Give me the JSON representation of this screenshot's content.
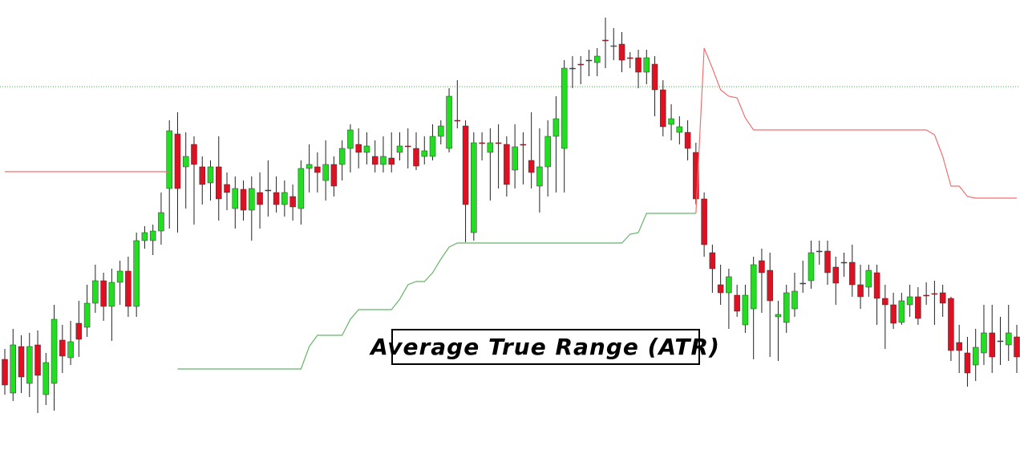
{
  "chart_data": {
    "type": "candlestick",
    "annotation": "Average True Range (ATR)",
    "ylim": [
      0,
      576
    ],
    "up_color": "#22dd22",
    "down_color": "#dd1122",
    "open": [
      128,
      86,
      144,
      98,
      146,
      84,
      98,
      152,
      130,
      173,
      168,
      198,
      226,
      194,
      224,
      238,
      194,
      276,
      276,
      288,
      341,
      409,
      368,
      396,
      368,
      348,
      368,
      346,
      316,
      340,
      314,
      336,
      339,
      336,
      321,
      331,
      316,
      366,
      368,
      351,
      371,
      371,
      391,
      396,
      386,
      381,
      371,
      379,
      386,
      394,
      391,
      381,
      381,
      406,
      391,
      426,
      419,
      286,
      398,
      386,
      398,
      396,
      364,
      396,
      376,
      344,
      368,
      406,
      391,
      491,
      496,
      501,
      498,
      526,
      518,
      521,
      504,
      504,
      486,
      496,
      464,
      421,
      411,
      411,
      386,
      328,
      261,
      221,
      211,
      208,
      171,
      191,
      251,
      239,
      181,
      174,
      191,
      223,
      226,
      263,
      263,
      243,
      249,
      249,
      221,
      218,
      236,
      204,
      196,
      174,
      196,
      206,
      208,
      210,
      211,
      204,
      149,
      136,
      121,
      136,
      161,
      151,
      146,
      156
    ],
    "high": [
      141,
      166,
      158,
      161,
      164,
      136,
      196,
      171,
      176,
      201,
      221,
      246,
      236,
      241,
      251,
      256,
      286,
      294,
      296,
      336,
      426,
      436,
      411,
      406,
      381,
      376,
      406,
      361,
      356,
      351,
      356,
      361,
      376,
      356,
      351,
      346,
      376,
      396,
      386,
      401,
      381,
      401,
      421,
      416,
      411,
      401,
      406,
      411,
      411,
      416,
      411,
      406,
      421,
      426,
      466,
      476,
      426,
      411,
      411,
      416,
      421,
      406,
      421,
      411,
      436,
      416,
      426,
      456,
      501,
      506,
      506,
      514,
      516,
      554,
      541,
      536,
      511,
      514,
      514,
      506,
      476,
      446,
      431,
      426,
      398,
      336,
      271,
      246,
      241,
      221,
      221,
      256,
      266,
      261,
      201,
      221,
      236,
      251,
      276,
      276,
      276,
      256,
      261,
      271,
      246,
      246,
      246,
      221,
      211,
      211,
      221,
      218,
      224,
      226,
      221,
      206,
      171,
      156,
      166,
      196,
      196,
      181,
      196,
      171
    ],
    "low": [
      84,
      76,
      86,
      81,
      61,
      71,
      64,
      111,
      121,
      131,
      156,
      186,
      176,
      151,
      196,
      181,
      181,
      266,
      258,
      271,
      291,
      286,
      316,
      296,
      321,
      326,
      301,
      314,
      291,
      301,
      276,
      291,
      306,
      311,
      306,
      301,
      296,
      336,
      336,
      326,
      331,
      351,
      361,
      366,
      371,
      361,
      361,
      361,
      376,
      366,
      364,
      371,
      376,
      396,
      386,
      416,
      274,
      276,
      376,
      326,
      341,
      331,
      341,
      346,
      341,
      311,
      331,
      336,
      336,
      466,
      471,
      481,
      481,
      491,
      501,
      486,
      491,
      466,
      471,
      431,
      406,
      401,
      396,
      376,
      321,
      256,
      211,
      196,
      166,
      181,
      161,
      128,
      186,
      131,
      126,
      161,
      181,
      211,
      216,
      246,
      221,
      196,
      231,
      206,
      191,
      206,
      171,
      141,
      166,
      171,
      181,
      171,
      196,
      171,
      181,
      126,
      111,
      94,
      101,
      121,
      111,
      121,
      126,
      111
    ],
    "close": [
      96,
      146,
      106,
      144,
      108,
      124,
      178,
      132,
      150,
      153,
      198,
      226,
      194,
      224,
      238,
      194,
      276,
      286,
      288,
      311,
      413,
      341,
      381,
      371,
      346,
      368,
      328,
      336,
      341,
      314,
      341,
      321,
      338,
      321,
      336,
      318,
      366,
      371,
      361,
      371,
      344,
      391,
      414,
      386,
      394,
      371,
      381,
      371,
      394,
      393,
      369,
      388,
      406,
      419,
      456,
      425,
      321,
      398,
      397,
      398,
      397,
      346,
      393,
      395,
      361,
      368,
      406,
      428,
      491,
      490,
      495,
      500,
      506,
      525,
      519,
      501,
      503,
      486,
      504,
      464,
      418,
      428,
      418,
      391,
      328,
      271,
      241,
      211,
      231,
      188,
      208,
      246,
      236,
      201,
      184,
      211,
      213,
      222,
      261,
      262,
      236,
      223,
      248,
      221,
      206,
      239,
      204,
      196,
      173,
      201,
      206,
      179,
      207,
      209,
      198,
      139,
      139,
      111,
      143,
      161,
      131,
      150,
      161,
      131
    ],
    "series": [
      {
        "color": "#f07070",
        "values": [
          362,
          362,
          362,
          362,
          362,
          362,
          362,
          362,
          362,
          362,
          362,
          362,
          362,
          362,
          362,
          362,
          362,
          362,
          362,
          362,
          362,
          null,
          null,
          null,
          null,
          null,
          null,
          null,
          null,
          null,
          null,
          null,
          null,
          null,
          null,
          null,
          null,
          null,
          null,
          null,
          null,
          null,
          null,
          null,
          null,
          null,
          null,
          null,
          null,
          null,
          null,
          null,
          null,
          null,
          null,
          null,
          null,
          null,
          null,
          null,
          null,
          null,
          null,
          null,
          null,
          null,
          null,
          null,
          null,
          null,
          null,
          null,
          null,
          null,
          null,
          null,
          null,
          null,
          null,
          null,
          null,
          null,
          null,
          null,
          310,
          516,
          491,
          464,
          456,
          454,
          429,
          414,
          414,
          414,
          414,
          414,
          414,
          414,
          414,
          414,
          414,
          414,
          414,
          414,
          414,
          414,
          414,
          414,
          414,
          414,
          414,
          414,
          414,
          408,
          381,
          344,
          344,
          331,
          329,
          329,
          329,
          329,
          329,
          329
        ]
      },
      {
        "color": "#66b566",
        "values": [
          null,
          null,
          null,
          null,
          null,
          null,
          null,
          null,
          null,
          null,
          null,
          null,
          null,
          null,
          null,
          null,
          null,
          null,
          null,
          null,
          null,
          116,
          116,
          116,
          116,
          116,
          116,
          116,
          116,
          116,
          116,
          116,
          116,
          116,
          116,
          116,
          116,
          144,
          158,
          158,
          158,
          158,
          178,
          190,
          190,
          190,
          190,
          190,
          203,
          221,
          225,
          225,
          236,
          253,
          268,
          273,
          273,
          273,
          273,
          273,
          273,
          273,
          273,
          273,
          273,
          273,
          273,
          273,
          273,
          273,
          273,
          273,
          273,
          273,
          273,
          273,
          284,
          286,
          310,
          310,
          310,
          310,
          310,
          310,
          310,
          null,
          null,
          null,
          null,
          null,
          null,
          null,
          null,
          null,
          null,
          null,
          null,
          null,
          null,
          null,
          null,
          null,
          null,
          null,
          null,
          null,
          null,
          null,
          null,
          null,
          null,
          null,
          null,
          null,
          null,
          null,
          null,
          null,
          null,
          null,
          null,
          null,
          null,
          null
        ]
      }
    ],
    "hline": {
      "value": 468,
      "color": "#33bb33"
    }
  }
}
